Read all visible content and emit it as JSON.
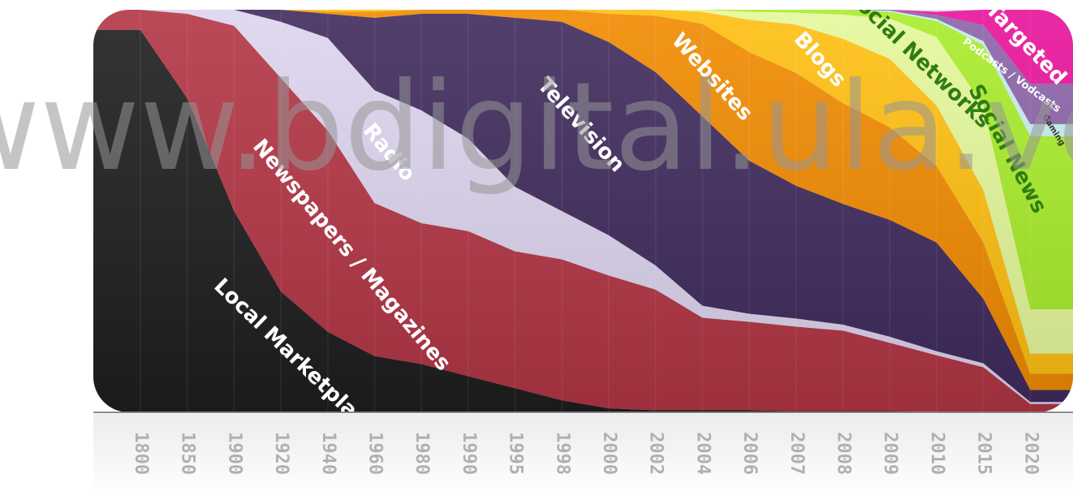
{
  "watermark": "www.bdigital.ula.ve",
  "chart_data": {
    "type": "area",
    "stacked": true,
    "normalized": true,
    "ylim": [
      0,
      100
    ],
    "categories": [
      "1800",
      "1850",
      "1900",
      "1920",
      "1940",
      "1960",
      "1980",
      "1990",
      "1995",
      "1998",
      "2000",
      "2002",
      "2004",
      "2006",
      "2007",
      "2008",
      "2009",
      "2010",
      "2015",
      "2020"
    ],
    "series": [
      {
        "name": "Local Marketplace",
        "color": "#1e1e1e",
        "values": [
          95,
          78,
          50,
          30,
          20,
          14,
          12,
          9,
          6,
          3,
          1,
          0.5,
          0.5,
          0.5,
          0.3,
          0.3,
          0.3,
          0.2,
          0.2,
          0.1
        ]
      },
      {
        "name": "Newspapers / Magazines",
        "color": "#b33545",
        "values": [
          5,
          21,
          46,
          53,
          50,
          38,
          35,
          36,
          34,
          35,
          33,
          30,
          23,
          22,
          21,
          20,
          17,
          14,
          11,
          2
        ]
      },
      {
        "name": "Radio",
        "color": "#dcd4ee",
        "values": [
          0,
          1,
          4,
          14,
          23,
          28,
          28,
          23,
          16,
          12,
          10,
          6,
          3,
          2,
          2,
          1.5,
          1.5,
          1,
          1,
          0.5
        ]
      },
      {
        "name": "Television",
        "color": "#3f2a5c",
        "values": [
          0,
          0,
          0,
          3,
          6,
          18,
          24,
          31,
          42,
          47,
          48,
          48,
          47,
          38,
          33,
          30,
          29,
          27,
          16,
          3
        ]
      },
      {
        "name": "Websites",
        "color": "#f18a00",
        "values": [
          0,
          0,
          0,
          0,
          0.5,
          1.5,
          1,
          1,
          2,
          3,
          7,
          14,
          23,
          27,
          28,
          25,
          23,
          19,
          14,
          4
        ]
      },
      {
        "name": "Blogs",
        "color": "#ffbf10",
        "values": [
          0,
          0,
          0,
          0,
          0.5,
          0.5,
          0,
          0,
          0,
          0,
          1,
          1.5,
          3,
          8,
          12,
          16,
          17,
          15,
          13,
          5
        ]
      },
      {
        "name": "Social Networks",
        "color": "#e5f89a",
        "values": [
          0,
          0,
          0,
          0,
          0,
          0,
          0,
          0,
          0,
          0,
          0,
          0,
          0.5,
          2,
          3,
          6,
          10,
          17,
          21,
          11
        ]
      },
      {
        "name": "Social News",
        "color": "#a8ec2a",
        "values": [
          0,
          0,
          0,
          0,
          0,
          0,
          0,
          0,
          0,
          0,
          0,
          0,
          0,
          0.5,
          0.7,
          1.2,
          1.7,
          4,
          15,
          43
        ]
      },
      {
        "name": "Gaming",
        "color": "#c4ecf0",
        "values": [
          0,
          0,
          0,
          0,
          0,
          0,
          0,
          0,
          0,
          0,
          0,
          0,
          0,
          0,
          0,
          0,
          0.3,
          0.5,
          1,
          3
        ]
      },
      {
        "name": "Podcasts / Vodcasts",
        "color": "#8b63a8",
        "values": [
          0,
          0,
          0,
          0,
          0,
          0,
          0,
          0,
          0,
          0,
          0,
          0,
          0,
          0,
          0,
          0,
          0.2,
          1,
          4,
          10
        ]
      },
      {
        "name": "Targeted",
        "color": "#e8129a",
        "values": [
          0,
          0,
          0,
          0,
          0,
          0,
          0,
          0,
          0,
          0,
          0,
          0,
          0,
          0,
          0,
          0,
          0,
          0.8,
          3.8,
          18.4
        ]
      }
    ],
    "title": "",
    "xlabel": "",
    "ylabel": "",
    "grid": true,
    "legend": "inline-labels"
  }
}
